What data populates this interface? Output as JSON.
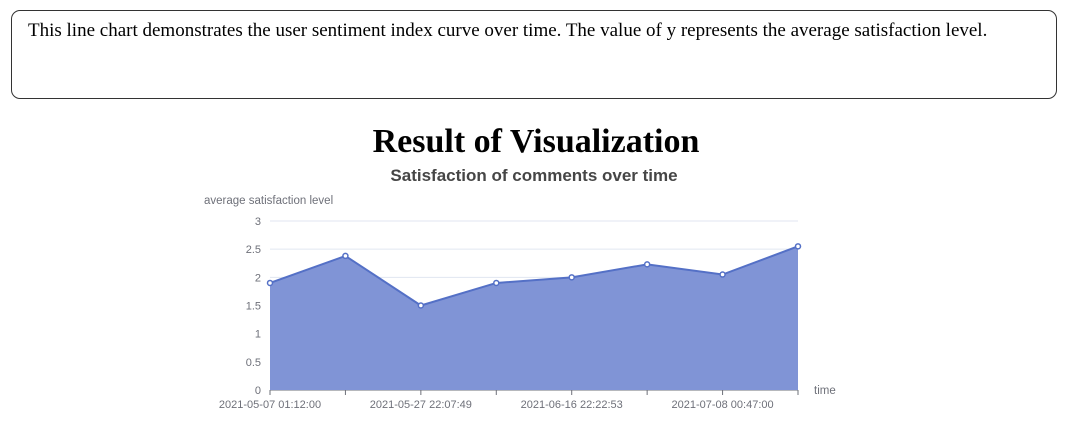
{
  "description": "This line chart demonstrates the user sentiment index curve over time. The value of y represents the average satisfaction level.",
  "heading": "Result of Visualization",
  "chart_data": {
    "type": "area",
    "title": "Satisfaction of comments over time",
    "xlabel": "time",
    "ylabel": "average satisfaction level",
    "ylim": [
      0,
      3
    ],
    "yticks": [
      "0",
      "0.5",
      "1",
      "1.5",
      "2",
      "2.5",
      "3"
    ],
    "xtick_labels": [
      "2021-05-07 01:12:00",
      "2021-05-27 22:07:49",
      "2021-06-16 22:22:53",
      "2021-07-08 00:47:00"
    ],
    "grid": true,
    "series": [
      {
        "values": [
          1.9,
          2.38,
          1.5,
          1.9,
          2.0,
          2.23,
          2.05,
          2.55
        ]
      }
    ],
    "colors": {
      "line": "#5470c6",
      "area": "#8094d6",
      "grid": "#e0e6f1",
      "axis_text": "#6e7079",
      "title": "#464646"
    }
  }
}
